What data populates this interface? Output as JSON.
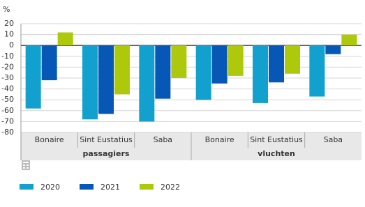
{
  "chart_data": {
    "type": "bar",
    "y_label": "%",
    "categories": [
      "Bonaire",
      "Sint Eustatius",
      "Saba",
      "Bonaire",
      "Sint Eustatius",
      "Saba"
    ],
    "groups": [
      "passagiers",
      "vluchten"
    ],
    "series": [
      {
        "name": "2020",
        "color": "#12a1cf",
        "values": [
          -58,
          -68,
          -70,
          -50,
          -53,
          -47
        ]
      },
      {
        "name": "2021",
        "color": "#0758b6",
        "values": [
          -32,
          -63,
          -49,
          -35,
          -34,
          -8
        ]
      },
      {
        "name": "2022",
        "color": "#aec90b",
        "values": [
          12,
          -45,
          -30,
          -28,
          -26,
          10
        ]
      }
    ],
    "ylim": [
      -80,
      20
    ],
    "yticks": [
      20,
      10,
      0,
      -10,
      -20,
      -30,
      -40,
      -50,
      -60,
      -70,
      -80
    ],
    "grid": true
  }
}
